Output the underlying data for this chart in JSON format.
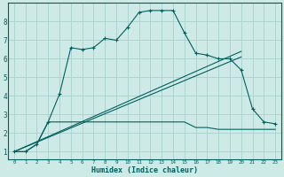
{
  "xlabel": "Humidex (Indice chaleur)",
  "bg_color": "#ceeae6",
  "grid_color": "#aed4d0",
  "line_color": "#006060",
  "spine_color": "#006060",
  "xlim": [
    -0.5,
    23.5
  ],
  "ylim": [
    0.6,
    9.0
  ],
  "xticks": [
    0,
    1,
    2,
    3,
    4,
    5,
    6,
    7,
    8,
    9,
    10,
    11,
    12,
    13,
    14,
    15,
    16,
    17,
    18,
    19,
    20,
    21,
    22,
    23
  ],
  "yticks": [
    1,
    2,
    3,
    4,
    5,
    6,
    7,
    8
  ],
  "series1_x": [
    0,
    1,
    2,
    3,
    4,
    5,
    6,
    7,
    8,
    9,
    10,
    11,
    12,
    13,
    14,
    15,
    16,
    17,
    18,
    19,
    20,
    21,
    22,
    23
  ],
  "series1_y": [
    1.0,
    1.0,
    1.4,
    2.6,
    4.1,
    6.6,
    6.5,
    6.6,
    7.1,
    7.0,
    7.7,
    8.5,
    8.6,
    8.6,
    8.6,
    7.4,
    6.3,
    6.2,
    6.0,
    6.0,
    5.4,
    3.3,
    2.6,
    2.5
  ],
  "series2_x": [
    0,
    1,
    2,
    3,
    4,
    5,
    6,
    7,
    8,
    9,
    10,
    11,
    12,
    13,
    14,
    15,
    16,
    17,
    18,
    19,
    20,
    21,
    22,
    23
  ],
  "series2_y": [
    1.0,
    1.0,
    1.4,
    2.6,
    2.6,
    2.6,
    2.6,
    2.6,
    2.6,
    2.6,
    2.6,
    2.6,
    2.6,
    2.6,
    2.6,
    2.6,
    2.3,
    2.3,
    2.2,
    2.2,
    2.2,
    2.2,
    2.2,
    2.2
  ],
  "series3_x": [
    0,
    20
  ],
  "series3_y": [
    1.0,
    6.1
  ],
  "series4_x": [
    0,
    20
  ],
  "series4_y": [
    1.0,
    6.4
  ],
  "xlabel_fontsize": 6.0,
  "tick_fontsize_x": 4.2,
  "tick_fontsize_y": 5.5
}
